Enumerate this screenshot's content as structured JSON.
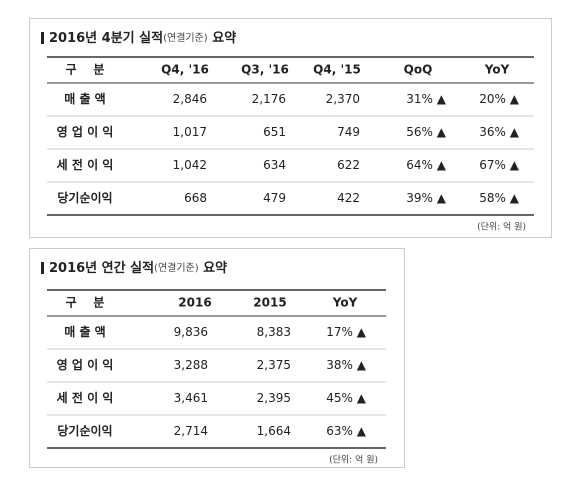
{
  "tables": [
    {
      "title": {
        "main": "2016년 4분기 실적",
        "sub": "(연결기준)",
        "end": " 요약"
      },
      "header": [
        "구    분",
        "Q4, '16",
        "Q3, '16",
        "Q4, '15",
        "QoQ",
        "YoY"
      ],
      "rows": [
        [
          "매 출 액",
          "2,846",
          "2,176",
          "2,370",
          "31% ▲",
          "20% ▲"
        ],
        [
          "영 업 이 익",
          "1,017",
          "651",
          "749",
          "56% ▲",
          "36% ▲"
        ],
        [
          "세 전 이 익",
          "1,042",
          "634",
          "622",
          "64% ▲",
          "67% ▲"
        ],
        [
          "당기순이익",
          "668",
          "479",
          "422",
          "39% ▲",
          "58% ▲"
        ]
      ],
      "unit": "(단위: 억 원)"
    },
    {
      "title": {
        "main": "2016년 연간 실적",
        "sub": "(연결기준)",
        "end": " 요약"
      },
      "header": [
        "구    분",
        "2016",
        "2015",
        "YoY"
      ],
      "rows": [
        [
          "매 출 액",
          "9,836",
          "8,383",
          "17% ▲"
        ],
        [
          "영 업 이 익",
          "3,288",
          "2,375",
          "38% ▲"
        ],
        [
          "세 전 이 익",
          "3,461",
          "2,395",
          "45% ▲"
        ],
        [
          "당기순이익",
          "2,714",
          "1,664",
          "63% ▲"
        ]
      ],
      "unit": "(단위: 억 원)"
    }
  ]
}
